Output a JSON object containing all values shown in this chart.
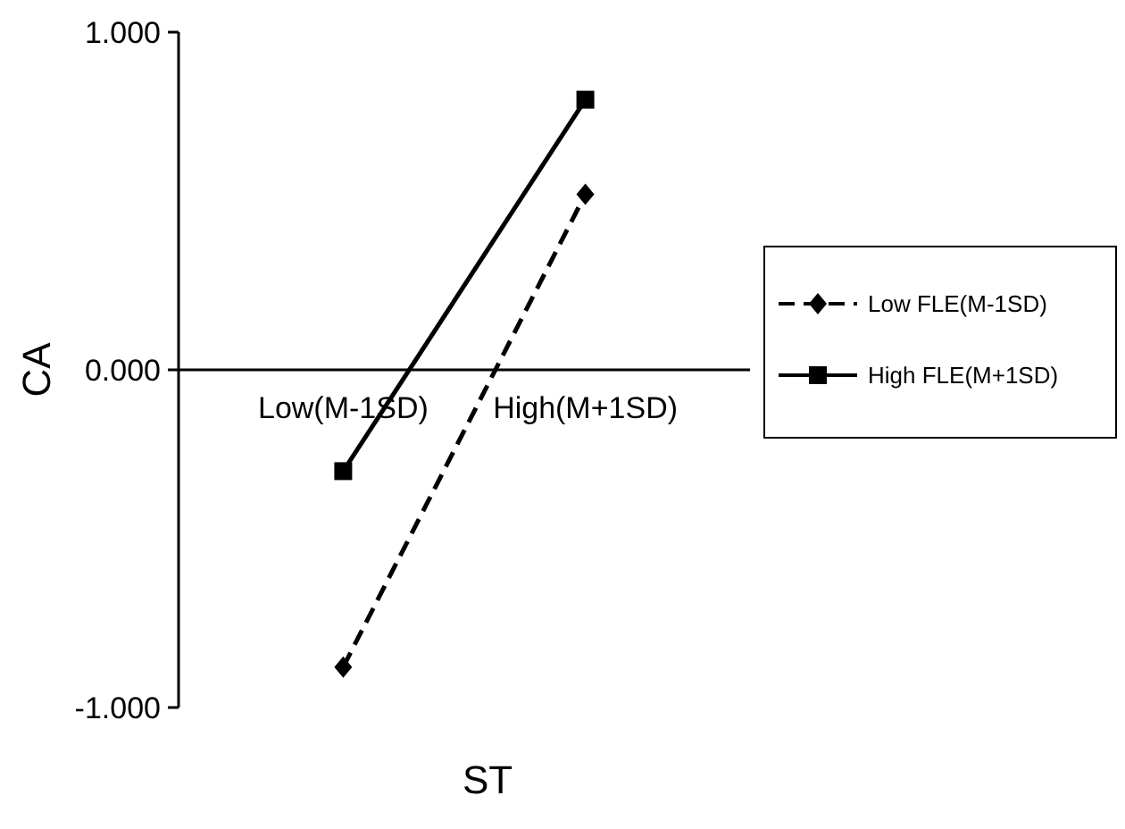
{
  "chart_data": {
    "type": "line",
    "xlabel": "ST",
    "ylabel": "CA",
    "categories": [
      "Low(M-1SD)",
      "High(M+1SD)"
    ],
    "series": [
      {
        "name": "Low FLE(M-1SD)",
        "color": "#000000",
        "values": [
          -0.88,
          0.52
        ],
        "marker": "diamond",
        "line_style": "dashed"
      },
      {
        "name": "High FLE(M+1SD)",
        "color": "#000000",
        "values": [
          -0.3,
          0.8
        ],
        "marker": "square",
        "line_style": "solid"
      }
    ],
    "ylim": [
      -1,
      1
    ],
    "yticks": [
      {
        "value": -1,
        "label": "-1.000"
      },
      {
        "value": 0,
        "label": "0.000"
      },
      {
        "value": 1,
        "label": "1.000"
      }
    ],
    "grid": false,
    "legend": "right"
  }
}
